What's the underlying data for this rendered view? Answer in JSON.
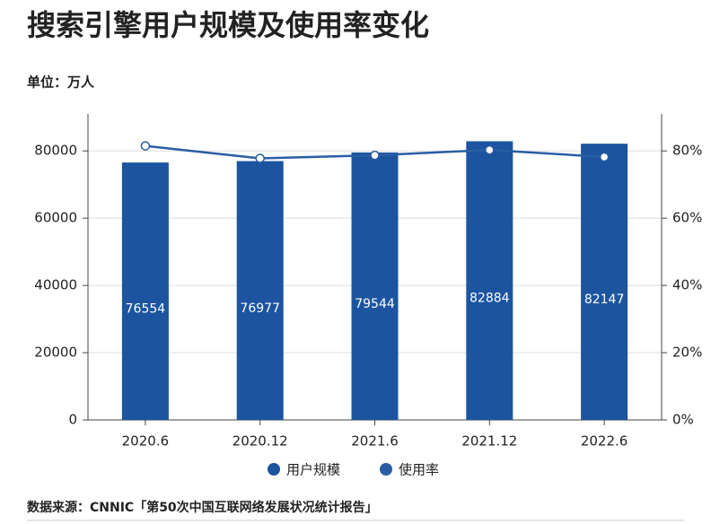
{
  "chart_data": {
    "type": "bar-line",
    "title": "搜索引擎用户规模及使用率变化",
    "subtitle": "单位：万人",
    "source": "数据来源：CNNIC「第50次中国互联网络发展状况统计报告」",
    "categories": [
      "2020.6",
      "2020.12",
      "2021.6",
      "2021.12",
      "2022.6"
    ],
    "series": [
      {
        "name": "用户规模",
        "type": "bar",
        "color": "#1c54a0",
        "values": [
          76554,
          76977,
          79544,
          82884,
          82147
        ]
      },
      {
        "name": "使用率",
        "type": "line",
        "axis": "y2",
        "color": "#2a5da3",
        "values": [
          81.5,
          77.8,
          78.7,
          80.3,
          78.2
        ]
      }
    ],
    "ylim": [
      0,
      91000
    ],
    "yticks": [
      0,
      20000,
      40000,
      60000,
      80000
    ],
    "y2lim": [
      0,
      91
    ],
    "y2ticks": [
      {
        "value": 0,
        "label": "0%"
      },
      {
        "value": 20,
        "label": "20%"
      },
      {
        "value": 40,
        "label": "40%"
      },
      {
        "value": 60,
        "label": "60%"
      },
      {
        "value": 80,
        "label": "80%"
      }
    ],
    "grid": true
  }
}
